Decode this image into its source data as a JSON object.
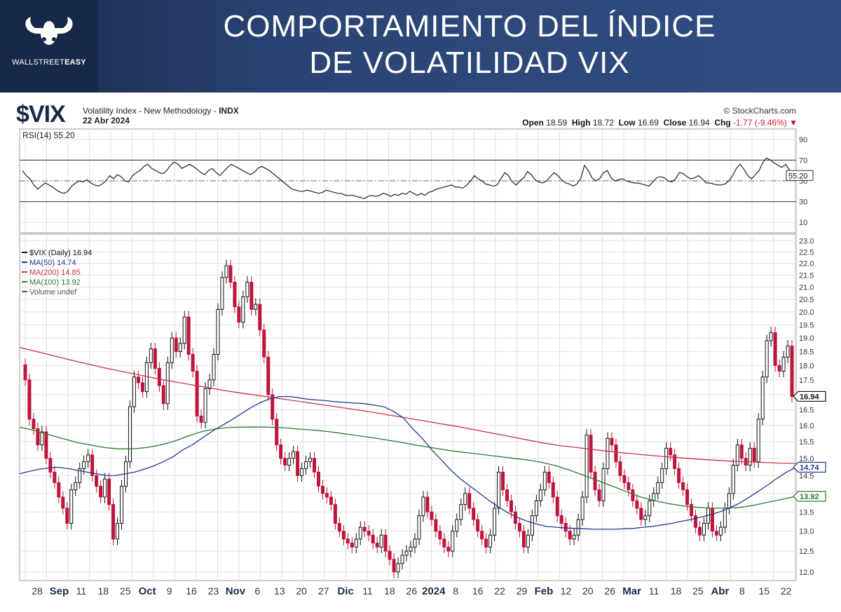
{
  "header": {
    "brand_name_light": "WALLSTREET",
    "brand_name_bold": "EASY",
    "title_line1": "COMPORTAMIENTO DEL ÍNDICE",
    "title_line2": "DE VOLATILIDAD VIX"
  },
  "chart_header": {
    "ticker": "$VIX",
    "description": "Volatility Index - New Methodology - ",
    "exchange": "INDX",
    "date": "22 Abr 2024",
    "credit": "© StockCharts.com",
    "open_label": "Open",
    "open_value": "18.59",
    "high_label": "High",
    "high_value": "18.72",
    "low_label": "Low",
    "low_value": "16.69",
    "close_label": "Close",
    "close_value": "16.94",
    "chg_label": "Chg",
    "chg_value": "-1.77 (-9.46%)",
    "chg_arrow": "▼"
  },
  "colors": {
    "banner": "#2b4474",
    "candle_up": "#111111",
    "candle_down": "#c0143c",
    "ma50": "#1f3a93",
    "ma200": "#c8324a",
    "ma100": "#2a7a2a",
    "rsi": "#222222"
  },
  "chart_data": [
    {
      "type": "line",
      "panel": "RSI",
      "legend": "RSI(14) 55.20",
      "current_value_label": "55.20",
      "ylim": [
        0,
        100
      ],
      "yticks": [
        10,
        30,
        50,
        70,
        90
      ],
      "reference_lines": [
        30,
        70
      ],
      "grid": true,
      "series": [
        {
          "name": "RSI(14)",
          "values": [
            60,
            55,
            52,
            46,
            42,
            45,
            48,
            46,
            44,
            41,
            39,
            38,
            40,
            45,
            48,
            50,
            49,
            51,
            48,
            46,
            45,
            47,
            50,
            55,
            52,
            56,
            54,
            50,
            49,
            55,
            58,
            60,
            64,
            66,
            62,
            60,
            58,
            57,
            60,
            65,
            68,
            66,
            62,
            64,
            66,
            64,
            61,
            58,
            56,
            60,
            62,
            58,
            55,
            59,
            63,
            66,
            64,
            62,
            60,
            58,
            56,
            58,
            62,
            64,
            62,
            60,
            57,
            54,
            51,
            48,
            45,
            42,
            41,
            40,
            40,
            41,
            40,
            39,
            38,
            39,
            41,
            40,
            39,
            38,
            38,
            36,
            36,
            36,
            35,
            34,
            33,
            35,
            36,
            35,
            36,
            38,
            37,
            35,
            37,
            36,
            38,
            37,
            40,
            38,
            36,
            38,
            36,
            39,
            40,
            42,
            43,
            44,
            45,
            46,
            44,
            44,
            43,
            46,
            50,
            55,
            52,
            50,
            47,
            46,
            45,
            46,
            52,
            58,
            55,
            49,
            46,
            50,
            53,
            59,
            56,
            51,
            49,
            48,
            50,
            54,
            58,
            55,
            51,
            48,
            47,
            45,
            47,
            52,
            65,
            60,
            53,
            50,
            52,
            58,
            60,
            53,
            50,
            51,
            52,
            50,
            49,
            48,
            48,
            47,
            46,
            45,
            49,
            53,
            54,
            53,
            50,
            49,
            52,
            58,
            57,
            54,
            52,
            53,
            55,
            52,
            48,
            48,
            47,
            46,
            46,
            47,
            50,
            55,
            62,
            66,
            61,
            55,
            52,
            56,
            60,
            68,
            72,
            70,
            67,
            65,
            63,
            66,
            60,
            55
          ],
          "last": 55.2
        }
      ]
    },
    {
      "type": "candlestick",
      "panel": "Price",
      "legend": [
        {
          "label": "$VIX (Daily) 16.94",
          "color": "#111111"
        },
        {
          "label": "MA(50) 14.74",
          "color": "#1f3a93"
        },
        {
          "label": "MA(200) 14.85",
          "color": "#c8324a"
        },
        {
          "label": "MA(100) 13.92",
          "color": "#2a7a2a"
        },
        {
          "label": "Volume undef",
          "color": "#555555"
        }
      ],
      "y_scale": "log",
      "ylim": [
        11.8,
        23.3
      ],
      "yticks": [
        12.0,
        12.5,
        13.0,
        13.5,
        14.0,
        14.5,
        15.0,
        15.5,
        16.0,
        16.5,
        17.0,
        17.5,
        18.0,
        18.5,
        19.0,
        19.5,
        20.0,
        20.5,
        21.0,
        21.5,
        22.0,
        22.5,
        23.0
      ],
      "ytick_labels": [
        "12.0",
        "12.5",
        "13.0",
        "13.5",
        "14.0",
        "14.5",
        "15.0",
        "15.5",
        "16.0",
        "16.5",
        "17.0",
        "17.5",
        "18.0",
        "18.5",
        "19.0",
        "19.5",
        "20.0",
        "20.5",
        "21.0",
        "21.5",
        "22.0",
        "22.5",
        "23.0"
      ],
      "value_tags": [
        {
          "label": "16.94",
          "value": 16.94,
          "color": "#111111"
        },
        {
          "label": "14.74",
          "value": 14.74,
          "color": "#1f3a93"
        },
        {
          "label": "13.92",
          "value": 13.92,
          "color": "#2a7a2a"
        }
      ],
      "x_labels": [
        "28",
        "Sep",
        "11",
        "18",
        "25",
        "Oct",
        "9",
        "16",
        "23",
        "Nov",
        "6",
        "13",
        "20",
        "27",
        "Dic",
        "11",
        "18",
        "26",
        "2024",
        "8",
        "16",
        "22",
        "29",
        "Feb",
        "12",
        "20",
        "26",
        "Mar",
        "11",
        "18",
        "25",
        "Abr",
        "8",
        "15",
        "22"
      ],
      "x_label_bold": [
        "Sep",
        "Oct",
        "Nov",
        "Dic",
        "2024",
        "Feb",
        "Mar",
        "Abr"
      ],
      "grid": true,
      "candles_close": [
        17.5,
        16.2,
        15.9,
        15.4,
        15.8,
        15.0,
        14.6,
        14.3,
        13.9,
        13.6,
        13.2,
        14.1,
        14.3,
        14.7,
        14.9,
        15.1,
        14.5,
        14.2,
        13.9,
        14.4,
        13.7,
        12.8,
        13.2,
        14.2,
        14.9,
        16.6,
        17.6,
        17.4,
        17.1,
        18.1,
        18.6,
        17.9,
        17.3,
        16.7,
        18.1,
        19.0,
        18.5,
        18.8,
        19.8,
        18.4,
        17.8,
        16.3,
        16.1,
        17.2,
        17.5,
        18.4,
        20.1,
        21.4,
        21.9,
        21.2,
        20.2,
        19.6,
        20.6,
        21.2,
        20.1,
        20.3,
        19.3,
        18.3,
        17.0,
        16.2,
        15.4,
        15.0,
        14.8,
        15.0,
        15.2,
        14.5,
        14.7,
        14.9,
        15.0,
        14.6,
        14.2,
        14.0,
        13.9,
        13.7,
        13.2,
        13.0,
        12.8,
        12.7,
        12.6,
        12.8,
        13.1,
        13.0,
        12.9,
        12.7,
        12.6,
        12.9,
        12.5,
        12.3,
        12.0,
        12.2,
        12.4,
        12.5,
        12.6,
        12.8,
        13.4,
        13.9,
        13.5,
        13.3,
        13.0,
        12.8,
        12.6,
        12.5,
        13.0,
        13.3,
        13.7,
        14.0,
        13.6,
        13.3,
        13.0,
        12.8,
        12.6,
        12.9,
        13.6,
        14.6,
        14.1,
        13.8,
        13.5,
        13.2,
        13.0,
        12.6,
        12.9,
        13.4,
        13.8,
        14.1,
        14.6,
        14.3,
        13.9,
        13.4,
        13.2,
        13.0,
        12.8,
        12.9,
        13.3,
        13.9,
        15.7,
        14.6,
        14.1,
        13.8,
        14.7,
        15.6,
        15.4,
        14.9,
        14.5,
        14.3,
        14.1,
        13.8,
        13.6,
        13.3,
        13.4,
        13.8,
        14.0,
        14.3,
        14.7,
        15.3,
        15.1,
        14.7,
        14.3,
        14.1,
        13.7,
        13.4,
        13.1,
        12.9,
        13.2,
        13.6,
        13.0,
        12.9,
        13.1,
        13.6,
        14.0,
        14.8,
        15.4,
        15.0,
        14.8,
        15.3,
        14.9,
        16.2,
        17.6,
        18.9,
        19.2,
        18.0,
        17.8,
        18.3,
        18.7,
        16.94
      ],
      "ma50": [
        14.55,
        14.62,
        14.68,
        14.72,
        14.74,
        14.7,
        14.65,
        14.6,
        14.55,
        14.5,
        14.5,
        14.55,
        14.6,
        14.68,
        14.78,
        14.9,
        15.05,
        15.25,
        15.4,
        15.6,
        15.8,
        15.98,
        16.15,
        16.35,
        16.55,
        16.72,
        16.85,
        16.93,
        16.94,
        16.9,
        16.85,
        16.82,
        16.8,
        16.76,
        16.74,
        16.72,
        16.7,
        16.65,
        16.6,
        16.45,
        16.25,
        15.9,
        15.6,
        15.25,
        14.95,
        14.65,
        14.4,
        14.2,
        14.0,
        13.8,
        13.62,
        13.47,
        13.35,
        13.25,
        13.18,
        13.12,
        13.1,
        13.08,
        13.07,
        13.06,
        13.05,
        13.05,
        13.05,
        13.06,
        13.07,
        13.1,
        13.12,
        13.16,
        13.2,
        13.25,
        13.3,
        13.36,
        13.42,
        13.5,
        13.6,
        13.72,
        13.88,
        14.05,
        14.23,
        14.42,
        14.6,
        14.74
      ],
      "ma200": [
        18.65,
        18.5,
        18.35,
        18.2,
        18.06,
        17.92,
        17.8,
        17.68,
        17.56,
        17.45,
        17.35,
        17.25,
        17.15,
        17.06,
        16.98,
        16.9,
        16.82,
        16.74,
        16.66,
        16.58,
        16.5,
        16.41,
        16.32,
        16.23,
        16.14,
        16.05,
        15.96,
        15.86,
        15.76,
        15.66,
        15.56,
        15.46,
        15.38,
        15.32,
        15.26,
        15.2,
        15.15,
        15.1,
        15.06,
        15.02,
        14.98,
        14.95,
        14.92,
        14.9,
        14.88,
        14.86,
        14.85
      ],
      "ma100": [
        15.95,
        15.85,
        15.72,
        15.6,
        15.48,
        15.4,
        15.32,
        15.28,
        15.28,
        15.32,
        15.4,
        15.52,
        15.68,
        15.82,
        15.9,
        15.94,
        15.95,
        15.95,
        15.94,
        15.92,
        15.88,
        15.85,
        15.8,
        15.74,
        15.68,
        15.62,
        15.55,
        15.48,
        15.4,
        15.33,
        15.26,
        15.2,
        15.15,
        15.1,
        15.05,
        15.0,
        14.95,
        14.88,
        14.78,
        14.65,
        14.5,
        14.35,
        14.2,
        14.05,
        13.9,
        13.8,
        13.72,
        13.66,
        13.62,
        13.6,
        13.6,
        13.62,
        13.68,
        13.76,
        13.84,
        13.92
      ]
    }
  ]
}
